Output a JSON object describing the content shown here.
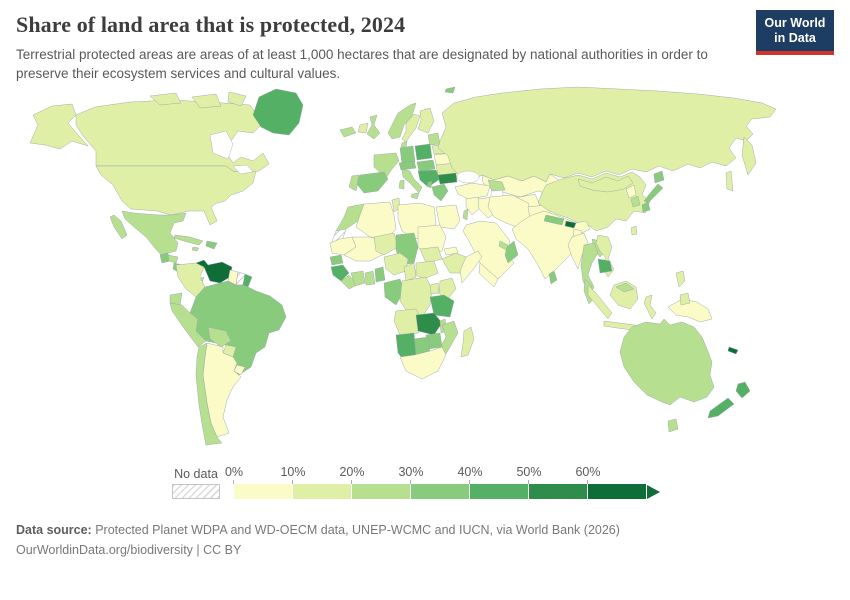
{
  "header": {
    "title": "Share of land area that is protected, 2024",
    "subtitle": "Terrestrial protected areas are areas of at least 1,000 hectares that are designated by national authorities in order to preserve their ecosystem services and cultural values."
  },
  "logo": {
    "line1": "Our World",
    "line2": "in Data",
    "navy": "#1d3d63",
    "red": "#d0342c"
  },
  "legend": {
    "no_data_label": "No data",
    "tick_labels": [
      "0%",
      "10%",
      "20%",
      "30%",
      "40%",
      "50%",
      "60%"
    ],
    "bin_colors": [
      "#fafbc7",
      "#dff0a6",
      "#b7df90",
      "#89cb7c",
      "#53b065",
      "#2e8d4a",
      "#0f6d38"
    ],
    "border_color": "#9aa4a8"
  },
  "footer": {
    "source_label": "Data source:",
    "source_text": " Protected Planet WDPA and WD-OECM data, UNEP-WCMC and IUCN, via World Bank (2026)",
    "license_line": "OurWorldinData.org/biodiversity | CC BY"
  },
  "chart_data": {
    "type": "choropleth",
    "unit": "% of land area protected",
    "year": 2024,
    "bins": [
      "0-10%",
      "10-20%",
      "20-30%",
      "30-40%",
      "40-50%",
      "50-60%",
      "60%+",
      "No data"
    ],
    "no_data_value": -1,
    "regions": {
      "canada": 1,
      "canada-arctic": 1,
      "usa": 1,
      "usa-alaska": 1,
      "greenland": 4,
      "mexico": 2,
      "guatemala": 3,
      "honduras": 2,
      "nicaragua": 3,
      "costa-rica": 3,
      "panama": 2,
      "cuba": 2,
      "hispaniola": 3,
      "jamaica": 2,
      "colombia": 1,
      "venezuela": 6,
      "guyana": 0,
      "suriname": -1,
      "french-guiana": 4,
      "ecuador": 2,
      "peru": 2,
      "brazil": 3,
      "bolivia": 2,
      "paraguay": 1,
      "uruguay": 0,
      "argentina": 0,
      "chile": 2,
      "iceland": 2,
      "ireland": 1,
      "uk": 2,
      "norway": 2,
      "sweden": 1,
      "finland": 1,
      "denmark": 2,
      "baltics": 2,
      "belarus": 1,
      "ukraine": 0,
      "poland": 4,
      "germany": 3,
      "france": 2,
      "spain": 3,
      "portugal": 2,
      "italy": 2,
      "sardinia": 2,
      "alpine": 3,
      "czech-hungary": 3,
      "balkans": 4,
      "romania": 1,
      "bulgaria": 5,
      "greece": 3,
      "albania": 3,
      "svalbard": 3,
      "russia": 1,
      "kazakhstan": 0,
      "uzbek-turkmen": 0,
      "kyrgyzstan": 1,
      "tajikistan": 3,
      "turkey": 0,
      "caucasus": 2,
      "syria-levant": 0,
      "israel": 2,
      "iraq": 0,
      "iran": 0,
      "afghanistan": 0,
      "pakistan": 0,
      "saudi-arabia": 0,
      "yemen": 0,
      "oman": 3,
      "uae": 2,
      "india": 0,
      "nepal": 3,
      "bhutan": 6,
      "bangladesh": 0,
      "sri-lanka": 3,
      "china": 1,
      "mongolia": 1,
      "north-korea": 0,
      "south-korea": 2,
      "japan": 3,
      "taiwan": 1,
      "myanmar": 0,
      "thailand": 2,
      "laos": 2,
      "vietnam": 1,
      "cambodia": 4,
      "malaysia": 2,
      "indonesia": 1,
      "philippines": 1,
      "papua-new-guinea": 0,
      "morocco": 2,
      "western-sahara": -1,
      "algeria": 0,
      "tunisia": 1,
      "libya": 0,
      "egypt": 0,
      "mauritania": 0,
      "mali": 0,
      "niger": 1,
      "chad": 3,
      "sudan": 0,
      "south-sudan": 1,
      "eritrea": 0,
      "ethiopia": 1,
      "somalia": 0,
      "senegal": 3,
      "guinea": 4,
      "sierra-leone-liberia": 2,
      "cote-divoire": 2,
      "ghana": 2,
      "togo-benin": 3,
      "nigeria": 1,
      "cameroon": 1,
      "central-african-republic": 1,
      "gabon-congo": 3,
      "drc": 1,
      "uganda": 1,
      "kenya": 1,
      "tanzania": 4,
      "angola": 1,
      "zambia": 5,
      "malawi": 2,
      "mozambique": 2,
      "zimbabwe": 3,
      "botswana": 3,
      "namibia": 4,
      "south-africa": 0,
      "madagascar": 1,
      "australia": 2,
      "tasmania": 2,
      "new-zealand": 4,
      "new-caledonia": 6
    }
  }
}
